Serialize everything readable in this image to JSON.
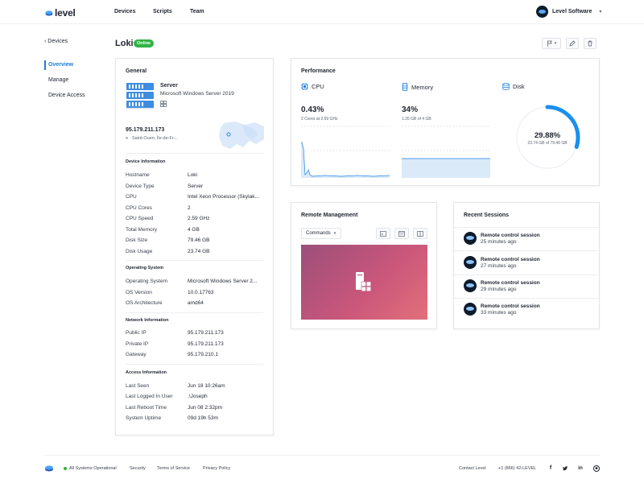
{
  "brand": {
    "name": "level",
    "accent": "#1a7fe0"
  },
  "nav": {
    "items": [
      "Devices",
      "Scripts",
      "Team"
    ]
  },
  "account": {
    "name": "Level Software"
  },
  "subnav": {
    "back": "‹ Devices",
    "items": [
      "Overview",
      "Manage",
      "Device Access"
    ],
    "active": "Overview"
  },
  "device": {
    "name": "Loki",
    "status": "Online",
    "status_color": "#2fb344"
  },
  "general": {
    "title": "General",
    "type_label": "Server",
    "os_label": "Microsoft Windows Server 2019",
    "ip": "95.179.211.173",
    "location": "Saint-Ouen, Île-de-Fr...",
    "sections": [
      {
        "heading": "Device Information",
        "rows": [
          {
            "k": "Hostname",
            "v": "Loki"
          },
          {
            "k": "Device Type",
            "v": "Server"
          },
          {
            "k": "CPU",
            "v": "Intel Xeon Processor (Skylak..."
          },
          {
            "k": "CPU Cores",
            "v": "2"
          },
          {
            "k": "CPU Speed",
            "v": "2.59 GHz"
          },
          {
            "k": "Total Memory",
            "v": "4 GB"
          },
          {
            "k": "Disk Size",
            "v": "79.46 GB"
          },
          {
            "k": "Disk Usage",
            "v": "23.74 GB"
          }
        ]
      },
      {
        "heading": "Operating System",
        "rows": [
          {
            "k": "Operating System",
            "v": "Microsoft Windows Server 2..."
          },
          {
            "k": "OS Version",
            "v": "10.0.17763"
          },
          {
            "k": "OS Architecture",
            "v": "amd64"
          }
        ]
      },
      {
        "heading": "Network Information",
        "rows": [
          {
            "k": "Public IP",
            "v": "95.179.211.173"
          },
          {
            "k": "Private IP",
            "v": "95.179.211.173"
          },
          {
            "k": "Gateway",
            "v": "95.179.210.1"
          }
        ]
      },
      {
        "heading": "Access Information",
        "rows": [
          {
            "k": "Last Seen",
            "v": "Jun 18 10:26am"
          },
          {
            "k": "Last Logged In User",
            "v": ".\\Joseph"
          },
          {
            "k": "Last Reboot Time",
            "v": "Jun 08 2:32pm"
          },
          {
            "k": "System Uptime",
            "v": "09d 19h 53m"
          }
        ]
      }
    ]
  },
  "performance": {
    "title": "Performance",
    "cpu": {
      "label": "CPU",
      "value": "0.43%",
      "sub": "2 Cores at 2.59 GHz"
    },
    "memory": {
      "label": "Memory",
      "value": "34%",
      "sub": "1.35 GB of 4 GB"
    },
    "disk": {
      "label": "Disk",
      "value": "29.88%",
      "sub": "23.74 GB of 79.46 GB",
      "fraction": 0.2988
    }
  },
  "remote": {
    "title": "Remote Management",
    "commands_label": "Commands"
  },
  "recent": {
    "title": "Recent Sessions",
    "sessions": [
      {
        "title": "Remote control session",
        "time": "25 minutes ago"
      },
      {
        "title": "Remote control session",
        "time": "27 minutes ago"
      },
      {
        "title": "Remote control session",
        "time": "29 minutes ago"
      },
      {
        "title": "Remote control session",
        "time": "33 minutes ago"
      }
    ]
  },
  "footer": {
    "status": "All Systems Operational",
    "links": [
      "Security",
      "Terms of Service",
      "Privacy Policy"
    ],
    "contact": "Contact Level",
    "phone": "+1 (866) 42-LEVEL",
    "social": [
      "facebook-icon",
      "twitter-icon",
      "linkedin-icon",
      "github-icon"
    ]
  }
}
